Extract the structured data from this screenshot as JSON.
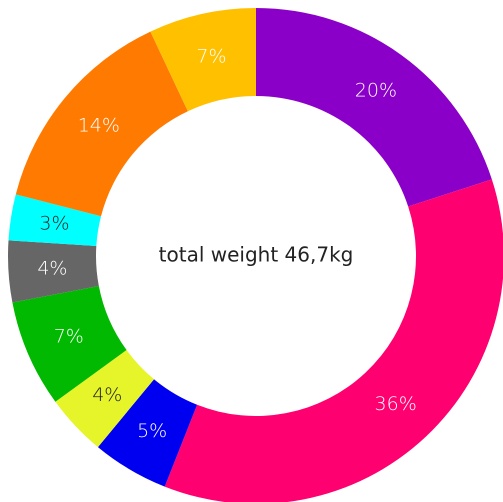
{
  "chart_data": {
    "type": "donut",
    "center_text": "total weight 46,7kg",
    "values": [
      20,
      36,
      5,
      4,
      7,
      4,
      3,
      14,
      7
    ],
    "value_labels": [
      "20%",
      "36%",
      "5%",
      "4%",
      "7%",
      "4%",
      "3%",
      "14%",
      "7%"
    ],
    "colors": [
      "#8a00c8",
      "#ff0070",
      "#0000f0",
      "#e6f52a",
      "#00b900",
      "#666666",
      "#00ffff",
      "#ff7a00",
      "#ffc000"
    ],
    "label_colors": [
      "#ffffff",
      "#ffffff",
      "#ffffff",
      "#222222",
      "#ffffff",
      "#ffffff",
      "#222222",
      "#ffffff",
      "#ffffff"
    ]
  }
}
